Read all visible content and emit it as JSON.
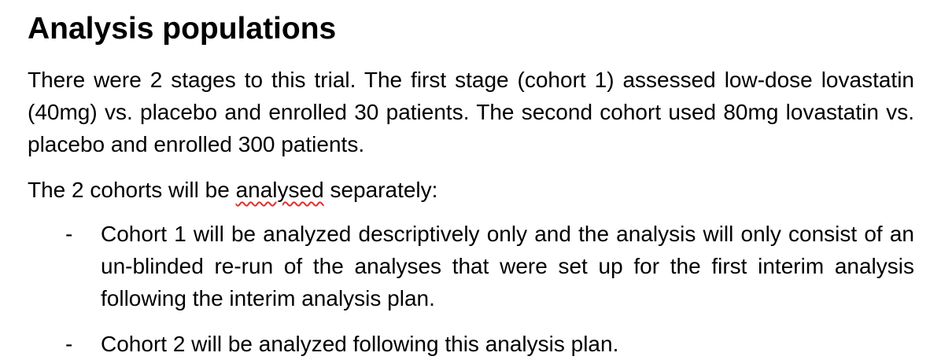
{
  "heading": "Analysis populations",
  "paragraph1": "There were 2 stages to this trial. The first stage (cohort 1) assessed low-dose lovastatin (40mg) vs. placebo and enrolled 30 patients. The second cohort used 80mg lovastatin vs. placebo and enrolled 300 patients.",
  "paragraph2": {
    "before": "The 2 cohorts will be ",
    "flagged_word": "analysed",
    "after": " separately:"
  },
  "list": {
    "marker": "-",
    "items": [
      "Cohort 1 will be analyzed descriptively only and the analysis will only consist of an un-blinded re-run of the analyses that were set up for the first interim analysis following the interim analysis plan.",
      "Cohort 2 will be analyzed following this analysis plan."
    ]
  },
  "colors": {
    "text": "#000000",
    "spellcheck_underline": "#e0312a"
  }
}
